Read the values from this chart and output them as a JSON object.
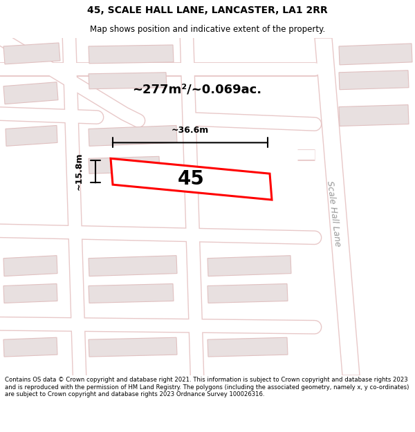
{
  "title": "45, SCALE HALL LANE, LANCASTER, LA1 2RR",
  "subtitle": "Map shows position and indicative extent of the property.",
  "footer": "Contains OS data © Crown copyright and database right 2021. This information is subject to Crown copyright and database rights 2023 and is reproduced with the permission of HM Land Registry. The polygons (including the associated geometry, namely x, y co-ordinates) are subject to Crown copyright and database rights 2023 Ordnance Survey 100026316.",
  "area_label": "~277m²/~0.069ac.",
  "width_label": "~36.6m",
  "height_label": "~15.8m",
  "plot_number": "45",
  "road_label": "Scale Hall Lane",
  "map_bg": "#f7f0f0",
  "building_color": "#e8e0e0",
  "building_outline": "#e0c0c0",
  "highlight_color": "#ff0000",
  "road_color": "#ffffff",
  "road_outline": "#e8c8c8"
}
